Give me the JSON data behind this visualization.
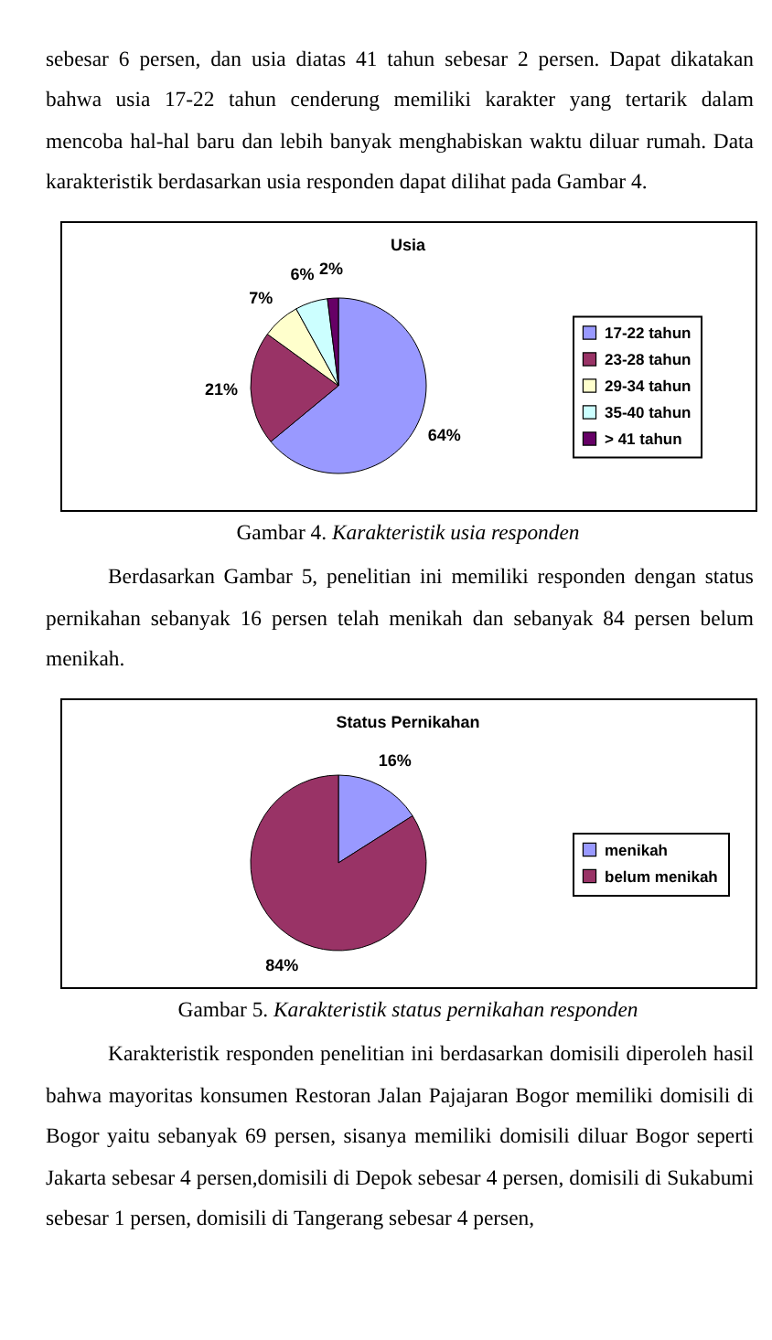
{
  "chart_data": [
    {
      "type": "other",
      "annotations": [
        "sebesar 6 persen, dan usia diatas 41 tahun sebesar 2 persen. Dapat dikatakan bahwa usia 17-22 tahun cenderung memiliki karakter yang tertarik dalam mencoba hal-hal baru dan lebih banyak menghabiskan waktu diluar rumah. Data karakteristik berdasarkan usia responden dapat dilihat pada Gambar 4."
      ]
    },
    {
      "type": "pie",
      "title": "Usia",
      "categories": [
        "17-22 tahun",
        "23-28 tahun",
        "29-34 tahun",
        "35-40 tahun",
        "> 41 tahun"
      ],
      "values": [
        64,
        21,
        7,
        6,
        2
      ],
      "colors": [
        "#9999ff",
        "#993366",
        "#ffffcc",
        "#ccffff",
        "#660066"
      ],
      "value_labels": [
        "64%",
        "21%",
        "7%",
        "6%",
        "2%"
      ],
      "legend": "right",
      "annotations": [
        "Gambar 4. Karakteristik usia responden"
      ]
    },
    {
      "type": "other",
      "annotations": [
        "Berdasarkan Gambar 5, penelitian ini memiliki responden dengan status pernikahan sebanyak 16 persen telah menikah dan sebanyak 84 persen belum menikah."
      ]
    },
    {
      "type": "pie",
      "title": "Status Pernikahan",
      "categories": [
        "menikah",
        "belum menikah"
      ],
      "values": [
        16,
        84
      ],
      "colors": [
        "#9999ff",
        "#993366"
      ],
      "value_labels": [
        "16%",
        "84%"
      ],
      "legend": "right",
      "annotations": [
        "Gambar 5. Karakteristik status pernikahan responden"
      ]
    },
    {
      "type": "other",
      "annotations": [
        "Karakteristik responden penelitian ini berdasarkan domisili diperoleh hasil bahwa mayoritas konsumen Restoran Jalan Pajajaran Bogor memiliki domisili di Bogor yaitu sebanyak 69 persen, sisanya memiliki domisili diluar Bogor seperti Jakarta sebesar 4 persen,domisili di Depok sebesar 4 persen, domisili di Sukabumi sebesar 1 persen, domisili di Tangerang sebesar 4 persen,"
      ]
    }
  ]
}
